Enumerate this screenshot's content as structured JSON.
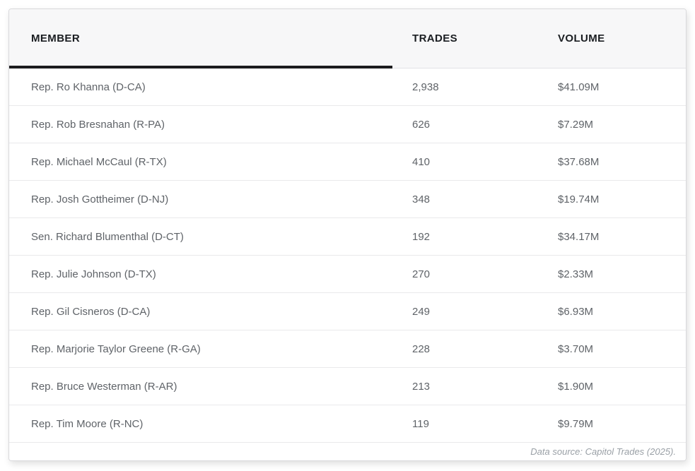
{
  "table": {
    "columns": {
      "member": "MEMBER",
      "trades": "TRADES",
      "volume": "VOLUME"
    },
    "rows": [
      {
        "member": "Rep. Ro Khanna (D-CA)",
        "trades": "2,938",
        "volume": "$41.09M"
      },
      {
        "member": "Rep. Rob Bresnahan (R-PA)",
        "trades": "626",
        "volume": "$7.29M"
      },
      {
        "member": "Rep. Michael McCaul (R-TX)",
        "trades": "410",
        "volume": "$37.68M"
      },
      {
        "member": "Rep. Josh Gottheimer (D-NJ)",
        "trades": "348",
        "volume": "$19.74M"
      },
      {
        "member": "Sen. Richard Blumenthal (D-CT)",
        "trades": "192",
        "volume": "$34.17M"
      },
      {
        "member": "Rep. Julie Johnson (D-TX)",
        "trades": "270",
        "volume": "$2.33M"
      },
      {
        "member": "Rep. Gil Cisneros (D-CA)",
        "trades": "249",
        "volume": "$6.93M"
      },
      {
        "member": "Rep. Marjorie Taylor Greene (R-GA)",
        "trades": "228",
        "volume": "$3.70M"
      },
      {
        "member": "Rep. Bruce Westerman (R-AR)",
        "trades": "213",
        "volume": "$1.90M"
      },
      {
        "member": "Rep. Tim Moore (R-NC)",
        "trades": "119",
        "volume": "$9.79M"
      }
    ],
    "caption": "Data source: Capitol Trades (2025)."
  },
  "colors": {
    "header_background": "#f7f7f8",
    "header_text": "#1a1d21",
    "header_accent_bar": "#1c1c1e",
    "row_text": "#5f6368",
    "row_divider": "#e9e9eb",
    "card_border": "#d9d9dc",
    "caption_text": "#9aa0a6"
  },
  "chart_data": {
    "type": "table",
    "title": "",
    "columns": [
      "MEMBER",
      "TRADES",
      "VOLUME"
    ],
    "rows": [
      [
        "Rep. Ro Khanna (D-CA)",
        2938,
        "$41.09M"
      ],
      [
        "Rep. Rob Bresnahan (R-PA)",
        626,
        "$7.29M"
      ],
      [
        "Rep. Michael McCaul (R-TX)",
        410,
        "$37.68M"
      ],
      [
        "Rep. Josh Gottheimer (D-NJ)",
        348,
        "$19.74M"
      ],
      [
        "Sen. Richard Blumenthal (D-CT)",
        192,
        "$34.17M"
      ],
      [
        "Rep. Julie Johnson (D-TX)",
        270,
        "$2.33M"
      ],
      [
        "Rep. Gil Cisneros (D-CA)",
        249,
        "$6.93M"
      ],
      [
        "Rep. Marjorie Taylor Greene (R-GA)",
        228,
        "$3.70M"
      ],
      [
        "Rep. Bruce Westerman (R-AR)",
        213,
        "$1.90M"
      ],
      [
        "Rep. Tim Moore (R-NC)",
        119,
        "$9.79M"
      ]
    ],
    "caption": "Data source: Capitol Trades (2025)."
  }
}
